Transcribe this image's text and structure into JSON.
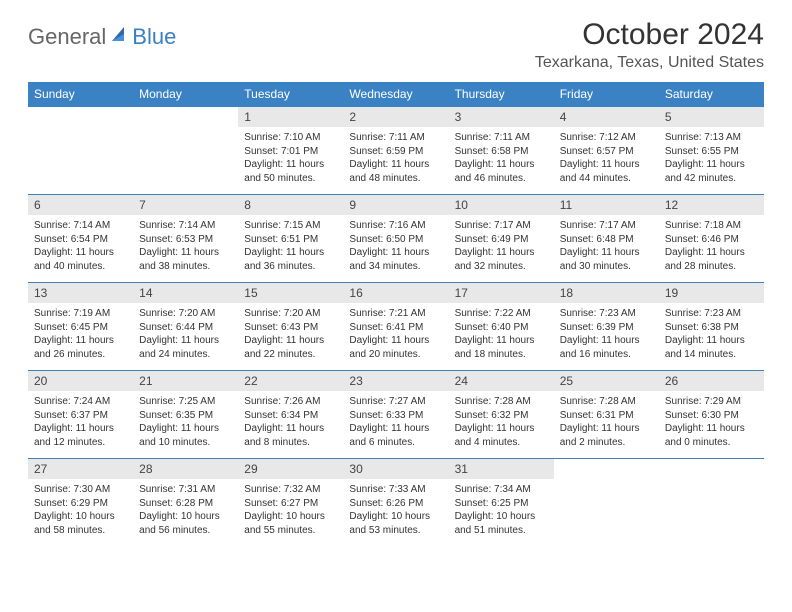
{
  "logo": {
    "text1": "General",
    "text2": "Blue"
  },
  "title": "October 2024",
  "location": "Texarkana, Texas, United States",
  "colors": {
    "header_bg": "#3b82c4",
    "header_text": "#ffffff",
    "daynum_bg": "#e8e8e8",
    "border": "#3b82c4",
    "logo_gray": "#666666",
    "logo_blue": "#3b7fc4"
  },
  "day_headers": [
    "Sunday",
    "Monday",
    "Tuesday",
    "Wednesday",
    "Thursday",
    "Friday",
    "Saturday"
  ],
  "weeks": [
    [
      null,
      null,
      {
        "n": "1",
        "sr": "Sunrise: 7:10 AM",
        "ss": "Sunset: 7:01 PM",
        "d1": "Daylight: 11 hours",
        "d2": "and 50 minutes."
      },
      {
        "n": "2",
        "sr": "Sunrise: 7:11 AM",
        "ss": "Sunset: 6:59 PM",
        "d1": "Daylight: 11 hours",
        "d2": "and 48 minutes."
      },
      {
        "n": "3",
        "sr": "Sunrise: 7:11 AM",
        "ss": "Sunset: 6:58 PM",
        "d1": "Daylight: 11 hours",
        "d2": "and 46 minutes."
      },
      {
        "n": "4",
        "sr": "Sunrise: 7:12 AM",
        "ss": "Sunset: 6:57 PM",
        "d1": "Daylight: 11 hours",
        "d2": "and 44 minutes."
      },
      {
        "n": "5",
        "sr": "Sunrise: 7:13 AM",
        "ss": "Sunset: 6:55 PM",
        "d1": "Daylight: 11 hours",
        "d2": "and 42 minutes."
      }
    ],
    [
      {
        "n": "6",
        "sr": "Sunrise: 7:14 AM",
        "ss": "Sunset: 6:54 PM",
        "d1": "Daylight: 11 hours",
        "d2": "and 40 minutes."
      },
      {
        "n": "7",
        "sr": "Sunrise: 7:14 AM",
        "ss": "Sunset: 6:53 PM",
        "d1": "Daylight: 11 hours",
        "d2": "and 38 minutes."
      },
      {
        "n": "8",
        "sr": "Sunrise: 7:15 AM",
        "ss": "Sunset: 6:51 PM",
        "d1": "Daylight: 11 hours",
        "d2": "and 36 minutes."
      },
      {
        "n": "9",
        "sr": "Sunrise: 7:16 AM",
        "ss": "Sunset: 6:50 PM",
        "d1": "Daylight: 11 hours",
        "d2": "and 34 minutes."
      },
      {
        "n": "10",
        "sr": "Sunrise: 7:17 AM",
        "ss": "Sunset: 6:49 PM",
        "d1": "Daylight: 11 hours",
        "d2": "and 32 minutes."
      },
      {
        "n": "11",
        "sr": "Sunrise: 7:17 AM",
        "ss": "Sunset: 6:48 PM",
        "d1": "Daylight: 11 hours",
        "d2": "and 30 minutes."
      },
      {
        "n": "12",
        "sr": "Sunrise: 7:18 AM",
        "ss": "Sunset: 6:46 PM",
        "d1": "Daylight: 11 hours",
        "d2": "and 28 minutes."
      }
    ],
    [
      {
        "n": "13",
        "sr": "Sunrise: 7:19 AM",
        "ss": "Sunset: 6:45 PM",
        "d1": "Daylight: 11 hours",
        "d2": "and 26 minutes."
      },
      {
        "n": "14",
        "sr": "Sunrise: 7:20 AM",
        "ss": "Sunset: 6:44 PM",
        "d1": "Daylight: 11 hours",
        "d2": "and 24 minutes."
      },
      {
        "n": "15",
        "sr": "Sunrise: 7:20 AM",
        "ss": "Sunset: 6:43 PM",
        "d1": "Daylight: 11 hours",
        "d2": "and 22 minutes."
      },
      {
        "n": "16",
        "sr": "Sunrise: 7:21 AM",
        "ss": "Sunset: 6:41 PM",
        "d1": "Daylight: 11 hours",
        "d2": "and 20 minutes."
      },
      {
        "n": "17",
        "sr": "Sunrise: 7:22 AM",
        "ss": "Sunset: 6:40 PM",
        "d1": "Daylight: 11 hours",
        "d2": "and 18 minutes."
      },
      {
        "n": "18",
        "sr": "Sunrise: 7:23 AM",
        "ss": "Sunset: 6:39 PM",
        "d1": "Daylight: 11 hours",
        "d2": "and 16 minutes."
      },
      {
        "n": "19",
        "sr": "Sunrise: 7:23 AM",
        "ss": "Sunset: 6:38 PM",
        "d1": "Daylight: 11 hours",
        "d2": "and 14 minutes."
      }
    ],
    [
      {
        "n": "20",
        "sr": "Sunrise: 7:24 AM",
        "ss": "Sunset: 6:37 PM",
        "d1": "Daylight: 11 hours",
        "d2": "and 12 minutes."
      },
      {
        "n": "21",
        "sr": "Sunrise: 7:25 AM",
        "ss": "Sunset: 6:35 PM",
        "d1": "Daylight: 11 hours",
        "d2": "and 10 minutes."
      },
      {
        "n": "22",
        "sr": "Sunrise: 7:26 AM",
        "ss": "Sunset: 6:34 PM",
        "d1": "Daylight: 11 hours",
        "d2": "and 8 minutes."
      },
      {
        "n": "23",
        "sr": "Sunrise: 7:27 AM",
        "ss": "Sunset: 6:33 PM",
        "d1": "Daylight: 11 hours",
        "d2": "and 6 minutes."
      },
      {
        "n": "24",
        "sr": "Sunrise: 7:28 AM",
        "ss": "Sunset: 6:32 PM",
        "d1": "Daylight: 11 hours",
        "d2": "and 4 minutes."
      },
      {
        "n": "25",
        "sr": "Sunrise: 7:28 AM",
        "ss": "Sunset: 6:31 PM",
        "d1": "Daylight: 11 hours",
        "d2": "and 2 minutes."
      },
      {
        "n": "26",
        "sr": "Sunrise: 7:29 AM",
        "ss": "Sunset: 6:30 PM",
        "d1": "Daylight: 11 hours",
        "d2": "and 0 minutes."
      }
    ],
    [
      {
        "n": "27",
        "sr": "Sunrise: 7:30 AM",
        "ss": "Sunset: 6:29 PM",
        "d1": "Daylight: 10 hours",
        "d2": "and 58 minutes."
      },
      {
        "n": "28",
        "sr": "Sunrise: 7:31 AM",
        "ss": "Sunset: 6:28 PM",
        "d1": "Daylight: 10 hours",
        "d2": "and 56 minutes."
      },
      {
        "n": "29",
        "sr": "Sunrise: 7:32 AM",
        "ss": "Sunset: 6:27 PM",
        "d1": "Daylight: 10 hours",
        "d2": "and 55 minutes."
      },
      {
        "n": "30",
        "sr": "Sunrise: 7:33 AM",
        "ss": "Sunset: 6:26 PM",
        "d1": "Daylight: 10 hours",
        "d2": "and 53 minutes."
      },
      {
        "n": "31",
        "sr": "Sunrise: 7:34 AM",
        "ss": "Sunset: 6:25 PM",
        "d1": "Daylight: 10 hours",
        "d2": "and 51 minutes."
      },
      null,
      null
    ]
  ]
}
